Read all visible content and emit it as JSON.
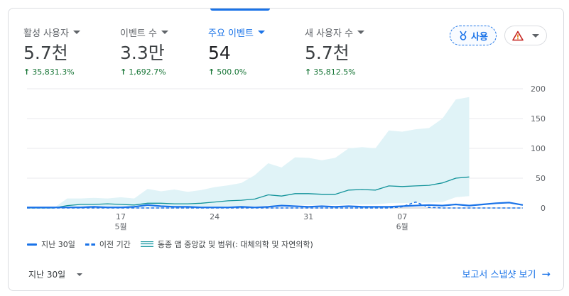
{
  "metrics": [
    {
      "label": "활성 사용자",
      "value": "5.7천",
      "delta": "35,831.3%",
      "selected": false
    },
    {
      "label": "이벤트 수",
      "value": "3.3만",
      "delta": "1,692.7%",
      "selected": false
    },
    {
      "label": "주요 이벤트",
      "value": "54",
      "delta": "500.0%",
      "selected": true
    },
    {
      "label": "새 사용자 수",
      "value": "5.7천",
      "delta": "35,812.5%",
      "selected": false
    }
  ],
  "badge": {
    "label": "사용",
    "icon": "medal-icon"
  },
  "alert": {
    "icon": "warning-triangle-icon",
    "color": "#e37400"
  },
  "colors": {
    "accent": "#1a73e8",
    "band_fill": "#e0f3f7",
    "band_line": "#12939a",
    "positive": "#137333"
  },
  "chart_data": {
    "type": "line",
    "x_tick_labels": [
      {
        "day": 17,
        "label": "17",
        "sublabel": "5월"
      },
      {
        "day": 24,
        "label": "24",
        "sublabel": ""
      },
      {
        "day": 31,
        "label": "31",
        "sublabel": ""
      },
      {
        "day": 38,
        "label": "07",
        "sublabel": "6월"
      }
    ],
    "y_ticks": [
      0,
      50,
      100,
      150,
      200
    ],
    "ylim": [
      0,
      200
    ],
    "grid": true,
    "series": [
      {
        "name": "지난 30일",
        "style": "solid",
        "values": [
          1,
          1,
          1,
          1,
          1,
          2,
          1,
          1,
          2,
          5,
          3,
          2,
          2,
          1,
          1,
          1,
          2,
          1,
          2,
          4,
          3,
          2,
          3,
          2,
          3,
          2,
          2,
          2,
          3,
          4,
          5,
          4,
          6,
          4,
          6,
          8,
          9,
          5
        ]
      },
      {
        "name": "이전 기간",
        "style": "dashed",
        "values": [
          0,
          0,
          0,
          0,
          0,
          0,
          0,
          0,
          0,
          0,
          0,
          0,
          0,
          0,
          0,
          0,
          0,
          0,
          0,
          0,
          0,
          0,
          0,
          0,
          0,
          0,
          0,
          0,
          2,
          10,
          1,
          0,
          0,
          0,
          0,
          0,
          0,
          0
        ]
      },
      {
        "name": "동종 앱 중앙값 및 범위(: 대체의학 및 자연의학)",
        "style": "band",
        "median": [
          0,
          0,
          0,
          4,
          6,
          6,
          7,
          6,
          5,
          8,
          8,
          7,
          7,
          8,
          10,
          12,
          13,
          15,
          22,
          20,
          24,
          24,
          23,
          23,
          30,
          31,
          30,
          37,
          36,
          37,
          38,
          42,
          50,
          52
        ],
        "upper": [
          0,
          0,
          0,
          16,
          16,
          17,
          16,
          18,
          16,
          32,
          28,
          31,
          27,
          30,
          35,
          38,
          42,
          55,
          75,
          68,
          85,
          84,
          80,
          84,
          100,
          102,
          100,
          130,
          128,
          132,
          134,
          150,
          182,
          186
        ],
        "lower": [
          0,
          0,
          0,
          1,
          1,
          1,
          1,
          1,
          1,
          2,
          2,
          2,
          2,
          2,
          2,
          3,
          3,
          3,
          4,
          4,
          5,
          5,
          5,
          5,
          6,
          6,
          6,
          8,
          8,
          9,
          9,
          10,
          18,
          20
        ]
      }
    ]
  },
  "legend": {
    "current": "지난 30일",
    "previous": "이전 기간",
    "benchmark": "동종 앱 중앙값 및 범위(: 대체의학 및 자연의학)"
  },
  "footer": {
    "period_label": "지난 30일",
    "report_link": "보고서 스냅샷 보기"
  }
}
